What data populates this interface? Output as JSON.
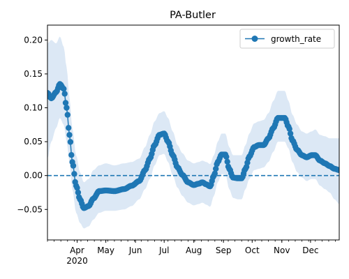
{
  "chart_data": {
    "type": "line",
    "title": "PA-Butler",
    "xlabel": "",
    "ylabel": "",
    "x_range": [
      "2020-03-01",
      "2020-12-31"
    ],
    "ylim": [
      -0.095,
      0.222
    ],
    "y_ticks": [
      -0.05,
      0.0,
      0.05,
      0.1,
      0.15,
      0.2
    ],
    "y_tick_labels": [
      "−0.05",
      "0.00",
      "0.05",
      "0.10",
      "0.15",
      "0.20"
    ],
    "x_ticks": [
      {
        "date": "2020-04-01",
        "label": "Apr",
        "sublabel": "2020"
      },
      {
        "date": "2020-05-01",
        "label": "May"
      },
      {
        "date": "2020-06-01",
        "label": "Jun"
      },
      {
        "date": "2020-07-01",
        "label": "Jul"
      },
      {
        "date": "2020-08-01",
        "label": "Aug"
      },
      {
        "date": "2020-09-01",
        "label": "Sep"
      },
      {
        "date": "2020-10-01",
        "label": "Oct"
      },
      {
        "date": "2020-11-01",
        "label": "Nov"
      },
      {
        "date": "2020-12-01",
        "label": "Dec"
      }
    ],
    "grid": false,
    "legend_position": "top-right",
    "reference_line": {
      "y": 0.0,
      "style": "dashed"
    },
    "series": [
      {
        "name": "growth_rate",
        "color": "#1f77b4",
        "marker": "circle",
        "band_color": "#dce8f5",
        "points": [
          {
            "x": "2020-03-01",
            "y": 0.122,
            "lo": 0.025,
            "hi": 0.195
          },
          {
            "x": "2020-03-05",
            "y": 0.114,
            "lo": 0.05,
            "hi": 0.2
          },
          {
            "x": "2020-03-10",
            "y": 0.123,
            "lo": 0.07,
            "hi": 0.195
          },
          {
            "x": "2020-03-14",
            "y": 0.135,
            "lo": 0.085,
            "hi": 0.205
          },
          {
            "x": "2020-03-18",
            "y": 0.128,
            "lo": 0.075,
            "hi": 0.19
          },
          {
            "x": "2020-03-21",
            "y": 0.1,
            "lo": 0.05,
            "hi": 0.16
          },
          {
            "x": "2020-03-24",
            "y": 0.06,
            "lo": 0.02,
            "hi": 0.115
          },
          {
            "x": "2020-03-27",
            "y": 0.02,
            "lo": -0.02,
            "hi": 0.07
          },
          {
            "x": "2020-03-31",
            "y": -0.015,
            "lo": -0.055,
            "hi": 0.03
          },
          {
            "x": "2020-04-04",
            "y": -0.035,
            "lo": -0.07,
            "hi": 0.005
          },
          {
            "x": "2020-04-08",
            "y": -0.048,
            "lo": -0.078,
            "hi": -0.01
          },
          {
            "x": "2020-04-13",
            "y": -0.045,
            "lo": -0.075,
            "hi": -0.005
          },
          {
            "x": "2020-04-18",
            "y": -0.034,
            "lo": -0.065,
            "hi": 0.008
          },
          {
            "x": "2020-04-24",
            "y": -0.023,
            "lo": -0.055,
            "hi": 0.015
          },
          {
            "x": "2020-05-01",
            "y": -0.022,
            "lo": -0.052,
            "hi": 0.018
          },
          {
            "x": "2020-05-10",
            "y": -0.023,
            "lo": -0.052,
            "hi": 0.015
          },
          {
            "x": "2020-05-20",
            "y": -0.02,
            "lo": -0.05,
            "hi": 0.018
          },
          {
            "x": "2020-05-28",
            "y": -0.015,
            "lo": -0.045,
            "hi": 0.02
          },
          {
            "x": "2020-06-05",
            "y": -0.008,
            "lo": -0.035,
            "hi": 0.025
          },
          {
            "x": "2020-06-11",
            "y": 0.008,
            "lo": -0.02,
            "hi": 0.042
          },
          {
            "x": "2020-06-16",
            "y": 0.025,
            "lo": -0.005,
            "hi": 0.06
          },
          {
            "x": "2020-06-21",
            "y": 0.045,
            "lo": 0.015,
            "hi": 0.08
          },
          {
            "x": "2020-06-26",
            "y": 0.06,
            "lo": 0.03,
            "hi": 0.092
          },
          {
            "x": "2020-07-01",
            "y": 0.062,
            "lo": 0.032,
            "hi": 0.095
          },
          {
            "x": "2020-07-05",
            "y": 0.05,
            "lo": 0.02,
            "hi": 0.085
          },
          {
            "x": "2020-07-10",
            "y": 0.03,
            "lo": 0.0,
            "hi": 0.065
          },
          {
            "x": "2020-07-15",
            "y": 0.012,
            "lo": -0.018,
            "hi": 0.045
          },
          {
            "x": "2020-07-20",
            "y": 0.001,
            "lo": -0.03,
            "hi": 0.033
          },
          {
            "x": "2020-07-26",
            "y": -0.01,
            "lo": -0.04,
            "hi": 0.022
          },
          {
            "x": "2020-08-01",
            "y": -0.014,
            "lo": -0.044,
            "hi": 0.018
          },
          {
            "x": "2020-08-06",
            "y": -0.012,
            "lo": -0.042,
            "hi": 0.02
          },
          {
            "x": "2020-08-10",
            "y": -0.01,
            "lo": -0.04,
            "hi": 0.022
          },
          {
            "x": "2020-08-14",
            "y": -0.013,
            "lo": -0.043,
            "hi": 0.02
          },
          {
            "x": "2020-08-18",
            "y": -0.016,
            "lo": -0.046,
            "hi": 0.017
          },
          {
            "x": "2020-08-22",
            "y": 0.0,
            "lo": -0.03,
            "hi": 0.03
          },
          {
            "x": "2020-08-26",
            "y": 0.02,
            "lo": -0.01,
            "hi": 0.05
          },
          {
            "x": "2020-08-30",
            "y": 0.031,
            "lo": 0.002,
            "hi": 0.062
          },
          {
            "x": "2020-09-03",
            "y": 0.031,
            "lo": 0.002,
            "hi": 0.062
          },
          {
            "x": "2020-09-07",
            "y": 0.01,
            "lo": -0.02,
            "hi": 0.042
          },
          {
            "x": "2020-09-11",
            "y": -0.003,
            "lo": -0.033,
            "hi": 0.03
          },
          {
            "x": "2020-09-16",
            "y": -0.004,
            "lo": -0.035,
            "hi": 0.03
          },
          {
            "x": "2020-09-20",
            "y": -0.004,
            "lo": -0.035,
            "hi": 0.03
          },
          {
            "x": "2020-09-24",
            "y": 0.01,
            "lo": -0.02,
            "hi": 0.045
          },
          {
            "x": "2020-09-28",
            "y": 0.028,
            "lo": -0.005,
            "hi": 0.062
          },
          {
            "x": "2020-10-03",
            "y": 0.042,
            "lo": 0.008,
            "hi": 0.077
          },
          {
            "x": "2020-10-08",
            "y": 0.045,
            "lo": 0.01,
            "hi": 0.08
          },
          {
            "x": "2020-10-13",
            "y": 0.045,
            "lo": 0.012,
            "hi": 0.082
          },
          {
            "x": "2020-10-18",
            "y": 0.055,
            "lo": 0.02,
            "hi": 0.092
          },
          {
            "x": "2020-10-23",
            "y": 0.07,
            "lo": 0.035,
            "hi": 0.11
          },
          {
            "x": "2020-10-28",
            "y": 0.085,
            "lo": 0.05,
            "hi": 0.125
          },
          {
            "x": "2020-11-04",
            "y": 0.085,
            "lo": 0.05,
            "hi": 0.125
          },
          {
            "x": "2020-11-08",
            "y": 0.072,
            "lo": 0.04,
            "hi": 0.11
          },
          {
            "x": "2020-11-12",
            "y": 0.052,
            "lo": 0.02,
            "hi": 0.09
          },
          {
            "x": "2020-11-17",
            "y": 0.038,
            "lo": 0.005,
            "hi": 0.075
          },
          {
            "x": "2020-11-22",
            "y": 0.03,
            "lo": -0.003,
            "hi": 0.065
          },
          {
            "x": "2020-11-27",
            "y": 0.027,
            "lo": -0.008,
            "hi": 0.062
          },
          {
            "x": "2020-12-02",
            "y": 0.03,
            "lo": -0.005,
            "hi": 0.065
          },
          {
            "x": "2020-12-06",
            "y": 0.03,
            "lo": -0.005,
            "hi": 0.068
          },
          {
            "x": "2020-12-11",
            "y": 0.022,
            "lo": -0.015,
            "hi": 0.06
          },
          {
            "x": "2020-12-16",
            "y": 0.018,
            "lo": -0.02,
            "hi": 0.058
          },
          {
            "x": "2020-12-21",
            "y": 0.014,
            "lo": -0.025,
            "hi": 0.055
          },
          {
            "x": "2020-12-26",
            "y": 0.01,
            "lo": -0.035,
            "hi": 0.055
          },
          {
            "x": "2020-12-31",
            "y": 0.008,
            "lo": -0.042,
            "hi": 0.055
          }
        ]
      }
    ]
  }
}
